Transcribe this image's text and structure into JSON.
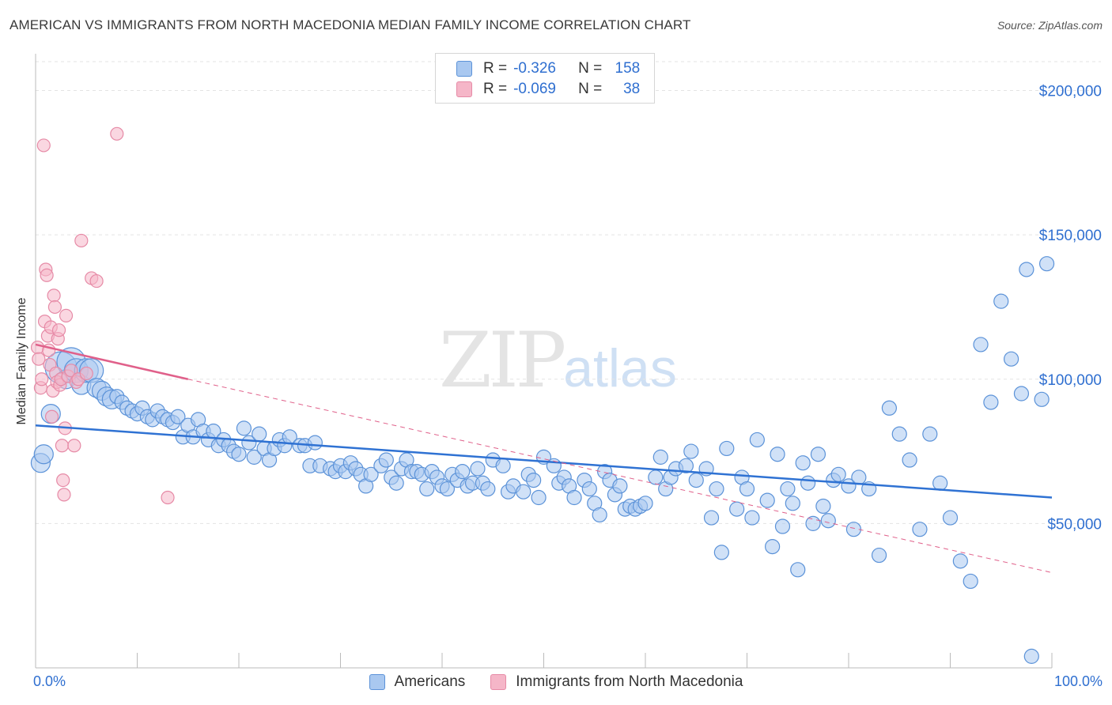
{
  "title": "AMERICAN VS IMMIGRANTS FROM NORTH MACEDONIA MEDIAN FAMILY INCOME CORRELATION CHART",
  "source": "Source: ZipAtlas.com",
  "watermark": {
    "zip": "ZIP",
    "atlas": "atlas"
  },
  "legend": {
    "rows": [
      {
        "r_label": "R =",
        "r_value": "-0.326",
        "n_label": "N =",
        "n_value": "158",
        "color": "#a9c8f0"
      },
      {
        "r_label": "R =",
        "r_value": "-0.069",
        "n_label": "N =",
        "n_value": "38",
        "color": "#f5b6c8"
      }
    ]
  },
  "bottom_legend": {
    "americans": "Americans",
    "immigrants": "Immigrants from North Macedonia"
  },
  "colors": {
    "blue_fill": "#a9c8f0",
    "blue_stroke": "#5b92d8",
    "blue_line": "#2f72d3",
    "pink_fill": "#f5b6c8",
    "pink_stroke": "#e68aa6",
    "pink_line": "#e0608a",
    "axis_text": "#2f6fd0",
    "grid": "#e3e3e3"
  },
  "chart_data": {
    "type": "scatter",
    "title": "AMERICAN VS IMMIGRANTS FROM NORTH MACEDONIA MEDIAN FAMILY INCOME CORRELATION CHART",
    "xlabel": "",
    "ylabel": "Median Family Income",
    "xlim": [
      0,
      100
    ],
    "ylim": [
      0,
      210000
    ],
    "x_tick_labels": [
      "0.0%",
      "100.0%"
    ],
    "y_ticks": [
      50000,
      100000,
      150000,
      200000
    ],
    "y_tick_labels": [
      "$50,000",
      "$100,000",
      "$150,000",
      "$200,000"
    ],
    "grid": true,
    "legend_position": "top-center",
    "series": [
      {
        "name": "Americans",
        "r": -0.326,
        "n": 158,
        "trend": {
          "x": [
            0,
            100
          ],
          "y": [
            84000,
            59000
          ]
        },
        "points": [
          [
            0.5,
            71000
          ],
          [
            0.8,
            74000
          ],
          [
            1.5,
            88000
          ],
          [
            2.5,
            104000
          ],
          [
            3,
            100000
          ],
          [
            3.5,
            106000
          ],
          [
            4,
            103000
          ],
          [
            4.5,
            98000
          ],
          [
            5,
            103000
          ],
          [
            5.5,
            103000
          ],
          [
            6,
            97000
          ],
          [
            6.5,
            96000
          ],
          [
            7,
            94000
          ],
          [
            7.5,
            93000
          ],
          [
            8,
            94000
          ],
          [
            8.5,
            92000
          ],
          [
            9,
            90000
          ],
          [
            9.5,
            89000
          ],
          [
            10,
            88000
          ],
          [
            10.5,
            90000
          ],
          [
            11,
            87000
          ],
          [
            11.5,
            86000
          ],
          [
            12,
            89000
          ],
          [
            12.5,
            87000
          ],
          [
            13,
            86000
          ],
          [
            13.5,
            85000
          ],
          [
            14,
            87000
          ],
          [
            14.5,
            80000
          ],
          [
            15,
            84000
          ],
          [
            15.5,
            80000
          ],
          [
            16,
            86000
          ],
          [
            16.5,
            82000
          ],
          [
            17,
            79000
          ],
          [
            17.5,
            82000
          ],
          [
            18,
            77000
          ],
          [
            18.5,
            79000
          ],
          [
            19,
            77000
          ],
          [
            19.5,
            75000
          ],
          [
            20,
            74000
          ],
          [
            20.5,
            83000
          ],
          [
            21,
            78000
          ],
          [
            21.5,
            73000
          ],
          [
            22,
            81000
          ],
          [
            22.5,
            76000
          ],
          [
            23,
            72000
          ],
          [
            23.5,
            76000
          ],
          [
            24,
            79000
          ],
          [
            24.5,
            77000
          ],
          [
            25,
            80000
          ],
          [
            26,
            77000
          ],
          [
            26.5,
            77000
          ],
          [
            27,
            70000
          ],
          [
            27.5,
            78000
          ],
          [
            28,
            70000
          ],
          [
            29,
            69000
          ],
          [
            29.5,
            68000
          ],
          [
            30,
            70000
          ],
          [
            30.5,
            68000
          ],
          [
            31,
            71000
          ],
          [
            31.5,
            69000
          ],
          [
            32,
            67000
          ],
          [
            32.5,
            63000
          ],
          [
            33,
            67000
          ],
          [
            34,
            70000
          ],
          [
            34.5,
            72000
          ],
          [
            35,
            66000
          ],
          [
            35.5,
            64000
          ],
          [
            36,
            69000
          ],
          [
            36.5,
            72000
          ],
          [
            37,
            68000
          ],
          [
            37.5,
            68000
          ],
          [
            38,
            67000
          ],
          [
            38.5,
            62000
          ],
          [
            39,
            68000
          ],
          [
            39.5,
            66000
          ],
          [
            40,
            63000
          ],
          [
            40.5,
            62000
          ],
          [
            41,
            67000
          ],
          [
            41.5,
            65000
          ],
          [
            42,
            68000
          ],
          [
            42.5,
            63000
          ],
          [
            43,
            64000
          ],
          [
            43.5,
            69000
          ],
          [
            44,
            64000
          ],
          [
            44.5,
            62000
          ],
          [
            45,
            72000
          ],
          [
            46,
            70000
          ],
          [
            46.5,
            61000
          ],
          [
            47,
            63000
          ],
          [
            48,
            61000
          ],
          [
            48.5,
            67000
          ],
          [
            49,
            65000
          ],
          [
            49.5,
            59000
          ],
          [
            50,
            73000
          ],
          [
            51,
            70000
          ],
          [
            51.5,
            64000
          ],
          [
            52,
            66000
          ],
          [
            52.5,
            63000
          ],
          [
            53,
            59000
          ],
          [
            54,
            65000
          ],
          [
            54.5,
            62000
          ],
          [
            55,
            57000
          ],
          [
            55.5,
            53000
          ],
          [
            56,
            68000
          ],
          [
            56.5,
            65000
          ],
          [
            57,
            60000
          ],
          [
            57.5,
            63000
          ],
          [
            58,
            55000
          ],
          [
            58.5,
            56000
          ],
          [
            59,
            55000
          ],
          [
            59.5,
            56000
          ],
          [
            60,
            57000
          ],
          [
            61,
            66000
          ],
          [
            61.5,
            73000
          ],
          [
            62,
            62000
          ],
          [
            62.5,
            66000
          ],
          [
            63,
            69000
          ],
          [
            64,
            70000
          ],
          [
            64.5,
            75000
          ],
          [
            65,
            65000
          ],
          [
            66,
            69000
          ],
          [
            66.5,
            52000
          ],
          [
            67,
            62000
          ],
          [
            67.5,
            40000
          ],
          [
            68,
            76000
          ],
          [
            69,
            55000
          ],
          [
            69.5,
            66000
          ],
          [
            70,
            62000
          ],
          [
            70.5,
            52000
          ],
          [
            71,
            79000
          ],
          [
            72,
            58000
          ],
          [
            72.5,
            42000
          ],
          [
            73,
            74000
          ],
          [
            73.5,
            49000
          ],
          [
            74,
            62000
          ],
          [
            74.5,
            57000
          ],
          [
            75,
            34000
          ],
          [
            75.5,
            71000
          ],
          [
            76,
            64000
          ],
          [
            76.5,
            50000
          ],
          [
            77,
            74000
          ],
          [
            77.5,
            56000
          ],
          [
            78,
            51000
          ],
          [
            78.5,
            65000
          ],
          [
            79,
            67000
          ],
          [
            80,
            63000
          ],
          [
            80.5,
            48000
          ],
          [
            81,
            66000
          ],
          [
            82,
            62000
          ],
          [
            83,
            39000
          ],
          [
            84,
            90000
          ],
          [
            85,
            81000
          ],
          [
            86,
            72000
          ],
          [
            87,
            48000
          ],
          [
            88,
            81000
          ],
          [
            89,
            64000
          ],
          [
            90,
            52000
          ],
          [
            91,
            37000
          ],
          [
            92,
            30000
          ],
          [
            93,
            112000
          ],
          [
            94,
            92000
          ],
          [
            95,
            127000
          ],
          [
            96,
            107000
          ],
          [
            97,
            95000
          ],
          [
            97.5,
            138000
          ],
          [
            98,
            4000
          ],
          [
            99,
            93000
          ],
          [
            99.5,
            140000
          ]
        ]
      },
      {
        "name": "Immigrants from North Macedonia",
        "r": -0.069,
        "n": 38,
        "trend_solid": {
          "x": [
            0,
            15
          ],
          "y": [
            112000,
            100000
          ]
        },
        "trend_dashed": {
          "x": [
            15,
            100
          ],
          "y": [
            100000,
            33000
          ]
        },
        "points": [
          [
            0.2,
            111000
          ],
          [
            0.3,
            107000
          ],
          [
            0.5,
            97000
          ],
          [
            0.6,
            100000
          ],
          [
            0.8,
            181000
          ],
          [
            0.9,
            120000
          ],
          [
            1,
            138000
          ],
          [
            1.1,
            136000
          ],
          [
            1.2,
            115000
          ],
          [
            1.3,
            110000
          ],
          [
            1.4,
            105000
          ],
          [
            1.5,
            118000
          ],
          [
            1.6,
            87000
          ],
          [
            1.7,
            96000
          ],
          [
            1.8,
            129000
          ],
          [
            1.9,
            125000
          ],
          [
            2,
            102000
          ],
          [
            2.1,
            99000
          ],
          [
            2.2,
            114000
          ],
          [
            2.3,
            117000
          ],
          [
            2.4,
            98000
          ],
          [
            2.5,
            100000
          ],
          [
            2.6,
            77000
          ],
          [
            2.7,
            65000
          ],
          [
            2.8,
            60000
          ],
          [
            2.9,
            83000
          ],
          [
            3,
            122000
          ],
          [
            3.2,
            101000
          ],
          [
            3.5,
            103000
          ],
          [
            3.8,
            77000
          ],
          [
            4,
            99000
          ],
          [
            4.2,
            100000
          ],
          [
            4.5,
            148000
          ],
          [
            5,
            102000
          ],
          [
            5.5,
            135000
          ],
          [
            6,
            134000
          ],
          [
            8,
            185000
          ],
          [
            13,
            59000
          ]
        ]
      }
    ]
  }
}
